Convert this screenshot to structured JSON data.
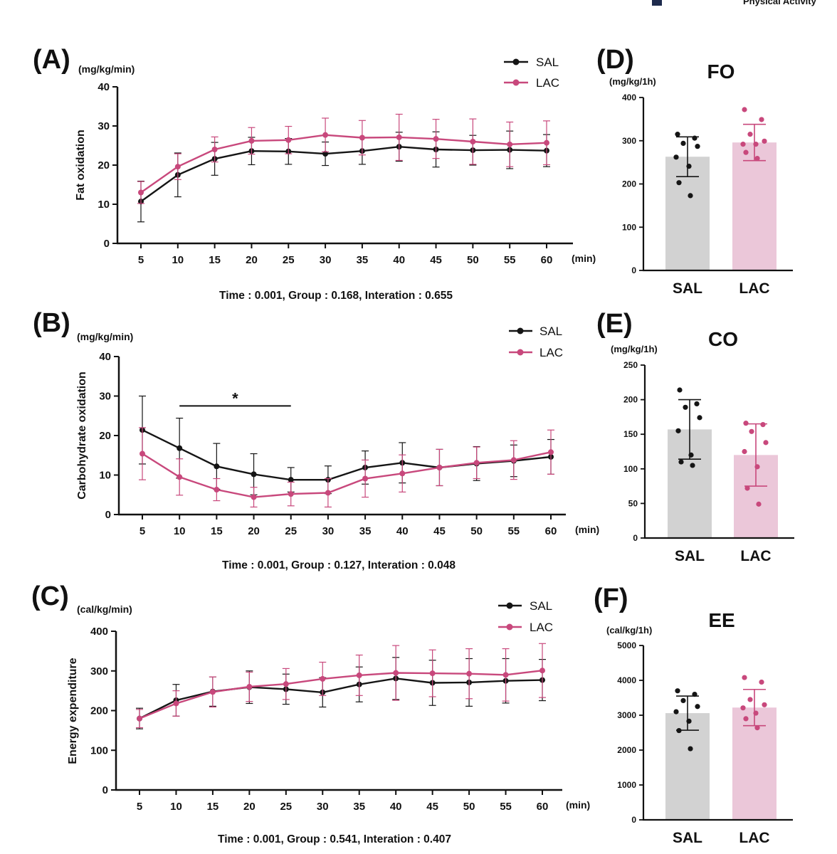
{
  "header_fragment": "Physical Activity",
  "colors": {
    "SAL": "#151515",
    "LAC": "#c8487c",
    "SAL_bar": "#d2d2d2",
    "LAC_bar": "#ebc7d9",
    "header_block": "#1e2b4d"
  },
  "chart_data": [
    {
      "panel": "(A)",
      "type": "line",
      "unit_label": "(mg/kg/min)",
      "ylabel": "Fat oxidation",
      "xunit": "(min)",
      "x": [
        5,
        10,
        15,
        20,
        25,
        30,
        35,
        40,
        45,
        50,
        55,
        60
      ],
      "ylim": [
        0,
        40
      ],
      "yticks": [
        0,
        10,
        20,
        30,
        40
      ],
      "series": [
        {
          "name": "SAL",
          "values": [
            10.7,
            17.5,
            21.6,
            23.6,
            23.5,
            22.9,
            23.6,
            24.7,
            24.0,
            23.8,
            23.9,
            23.7
          ],
          "errors": [
            5.2,
            5.6,
            4.2,
            3.5,
            3.3,
            3.0,
            3.4,
            3.7,
            4.5,
            3.8,
            4.8,
            4.1
          ]
        },
        {
          "name": "LAC",
          "values": [
            13.0,
            19.6,
            24.0,
            26.2,
            26.4,
            27.7,
            27.0,
            27.1,
            26.7,
            26.0,
            25.3,
            25.7
          ],
          "errors": [
            2.8,
            3.3,
            3.2,
            3.4,
            3.5,
            4.3,
            4.4,
            5.9,
            5.0,
            5.8,
            5.7,
            5.6
          ]
        }
      ],
      "legend": [
        "SAL",
        "LAC"
      ],
      "stats": "Time : 0.001, Group : 0.168, Interation : 0.655"
    },
    {
      "panel": "(B)",
      "type": "line",
      "unit_label": "(mg/kg/min)",
      "ylabel": "Carbohydrate oxidation",
      "xunit": "(min)",
      "x": [
        5,
        10,
        15,
        20,
        25,
        30,
        35,
        40,
        45,
        50,
        55,
        60
      ],
      "ylim": [
        0,
        40
      ],
      "yticks": [
        0,
        10,
        20,
        30,
        40
      ],
      "series": [
        {
          "name": "SAL",
          "values": [
            21.4,
            16.8,
            12.2,
            10.2,
            8.8,
            8.8,
            11.9,
            13.1,
            11.9,
            12.9,
            13.6,
            14.6
          ],
          "errors": [
            8.6,
            7.6,
            5.8,
            5.2,
            3.1,
            3.5,
            4.2,
            5.1,
            4.6,
            4.3,
            4.0,
            4.4
          ]
        },
        {
          "name": "LAC",
          "values": [
            15.4,
            9.5,
            6.3,
            4.4,
            5.2,
            5.5,
            9.1,
            10.4,
            11.9,
            13.1,
            13.8,
            15.8
          ],
          "errors": [
            6.6,
            4.6,
            2.8,
            2.5,
            3.0,
            3.6,
            4.7,
            4.7,
            4.6,
            4.0,
            4.9,
            5.6
          ]
        }
      ],
      "legend": [
        "SAL",
        "LAC"
      ],
      "significance": {
        "from": 10,
        "to": 25,
        "level": 27.5,
        "label": "*"
      },
      "stats": "Time : 0.001, Group : 0.127, Interation : 0.048"
    },
    {
      "panel": "(C)",
      "type": "line",
      "unit_label": "(cal/kg/min)",
      "ylabel": "Energy expenditure",
      "xunit": "(min)",
      "x": [
        5,
        10,
        15,
        20,
        25,
        30,
        35,
        40,
        45,
        50,
        55,
        60
      ],
      "ylim": [
        0,
        400
      ],
      "yticks": [
        0,
        100,
        200,
        300,
        400
      ],
      "series": [
        {
          "name": "SAL",
          "values": [
            180,
            226,
            248,
            259,
            254,
            246,
            266,
            281,
            270,
            271,
            275,
            277
          ],
          "errors": [
            26,
            40,
            37,
            41,
            38,
            37,
            44,
            53,
            57,
            60,
            56,
            52
          ]
        },
        {
          "name": "LAC",
          "values": [
            180,
            218,
            247,
            260,
            267,
            280,
            289,
            295,
            294,
            293,
            290,
            301
          ],
          "errors": [
            23,
            32,
            38,
            37,
            39,
            42,
            51,
            69,
            59,
            63,
            66,
            68
          ]
        }
      ],
      "legend": [
        "SAL",
        "LAC"
      ],
      "stats": "Time : 0.001, Group : 0.541, Interation : 0.407"
    },
    {
      "panel": "(D)",
      "type": "bar",
      "title": "FO",
      "unit_label": "(mg/kg/1h)",
      "categories": [
        "SAL",
        "LAC"
      ],
      "ylim": [
        0,
        400
      ],
      "yticks": [
        0,
        100,
        200,
        300,
        400
      ],
      "values": [
        263,
        296
      ],
      "errors": [
        46,
        42
      ],
      "points": [
        [
          315,
          306,
          294,
          287,
          262,
          241,
          203,
          173
        ],
        [
          372,
          349,
          315,
          299,
          292,
          292,
          273,
          259
        ]
      ]
    },
    {
      "panel": "(E)",
      "type": "bar",
      "title": "CO",
      "unit_label": "(mg/kg/1h)",
      "categories": [
        "SAL",
        "LAC"
      ],
      "ylim": [
        0,
        250
      ],
      "yticks": [
        0,
        50,
        100,
        150,
        200,
        250
      ],
      "values": [
        157,
        120
      ],
      "errors": [
        43,
        45
      ],
      "points": [
        [
          214,
          194,
          189,
          174,
          155,
          120,
          110,
          105
        ],
        [
          166,
          164,
          154,
          138,
          125,
          103,
          72,
          49
        ]
      ]
    },
    {
      "panel": "(F)",
      "type": "bar",
      "title": "EE",
      "unit_label": "(cal/kg/1h)",
      "categories": [
        "SAL",
        "LAC"
      ],
      "ylim": [
        0,
        5000
      ],
      "yticks": [
        0,
        1000,
        2000,
        3000,
        4000,
        5000
      ],
      "values": [
        3060,
        3220
      ],
      "errors": [
        490,
        520
      ],
      "points": [
        [
          3700,
          3600,
          3420,
          3250,
          3100,
          2830,
          2560,
          2040
        ],
        [
          4080,
          3950,
          3450,
          3300,
          3210,
          3060,
          2900,
          2640
        ]
      ]
    }
  ]
}
